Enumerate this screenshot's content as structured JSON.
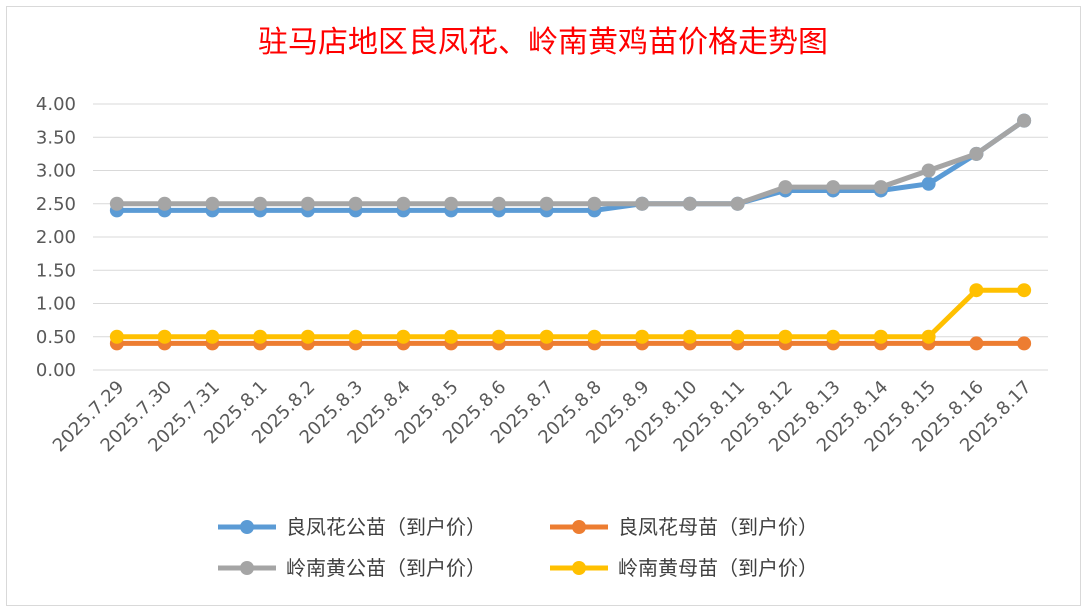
{
  "chart_data": {
    "type": "line",
    "title": "驻马店地区良凤花、岭南黄鸡苗价格走势图",
    "xlabel": "",
    "ylabel": "",
    "ylim": [
      0,
      4
    ],
    "ytick_step": 0.5,
    "ytick_labels": [
      "0.00",
      "0.50",
      "1.00",
      "1.50",
      "2.00",
      "2.50",
      "3.00",
      "3.50",
      "4.00"
    ],
    "grid": true,
    "legend_position": "bottom",
    "categories": [
      "2025.7.29",
      "2025.7.30",
      "2025.7.31",
      "2025.8.1",
      "2025.8.2",
      "2025.8.3",
      "2025.8.4",
      "2025.8.5",
      "2025.8.6",
      "2025.8.7",
      "2025.8.8",
      "2025.8.9",
      "2025.8.10",
      "2025.8.11",
      "2025.8.12",
      "2025.8.13",
      "2025.8.14",
      "2025.8.15",
      "2025.8.16",
      "2025.8.17"
    ],
    "series": [
      {
        "name": "良凤花公苗（到户价）",
        "color": "#5b9bd5",
        "values": [
          2.4,
          2.4,
          2.4,
          2.4,
          2.4,
          2.4,
          2.4,
          2.4,
          2.4,
          2.4,
          2.4,
          2.5,
          2.5,
          2.5,
          2.7,
          2.7,
          2.7,
          2.8,
          3.25,
          3.75
        ]
      },
      {
        "name": "良凤花母苗（到户价）",
        "color": "#ed7d31",
        "values": [
          0.4,
          0.4,
          0.4,
          0.4,
          0.4,
          0.4,
          0.4,
          0.4,
          0.4,
          0.4,
          0.4,
          0.4,
          0.4,
          0.4,
          0.4,
          0.4,
          0.4,
          0.4,
          0.4,
          0.4
        ]
      },
      {
        "name": "岭南黄公苗（到户价）",
        "color": "#a5a5a5",
        "values": [
          2.5,
          2.5,
          2.5,
          2.5,
          2.5,
          2.5,
          2.5,
          2.5,
          2.5,
          2.5,
          2.5,
          2.5,
          2.5,
          2.5,
          2.75,
          2.75,
          2.75,
          3.0,
          3.25,
          3.75
        ]
      },
      {
        "name": "岭南黄母苗（到户价）",
        "color": "#ffc000",
        "values": [
          0.5,
          0.5,
          0.5,
          0.5,
          0.5,
          0.5,
          0.5,
          0.5,
          0.5,
          0.5,
          0.5,
          0.5,
          0.5,
          0.5,
          0.5,
          0.5,
          0.5,
          0.5,
          1.2,
          1.2
        ]
      }
    ]
  }
}
